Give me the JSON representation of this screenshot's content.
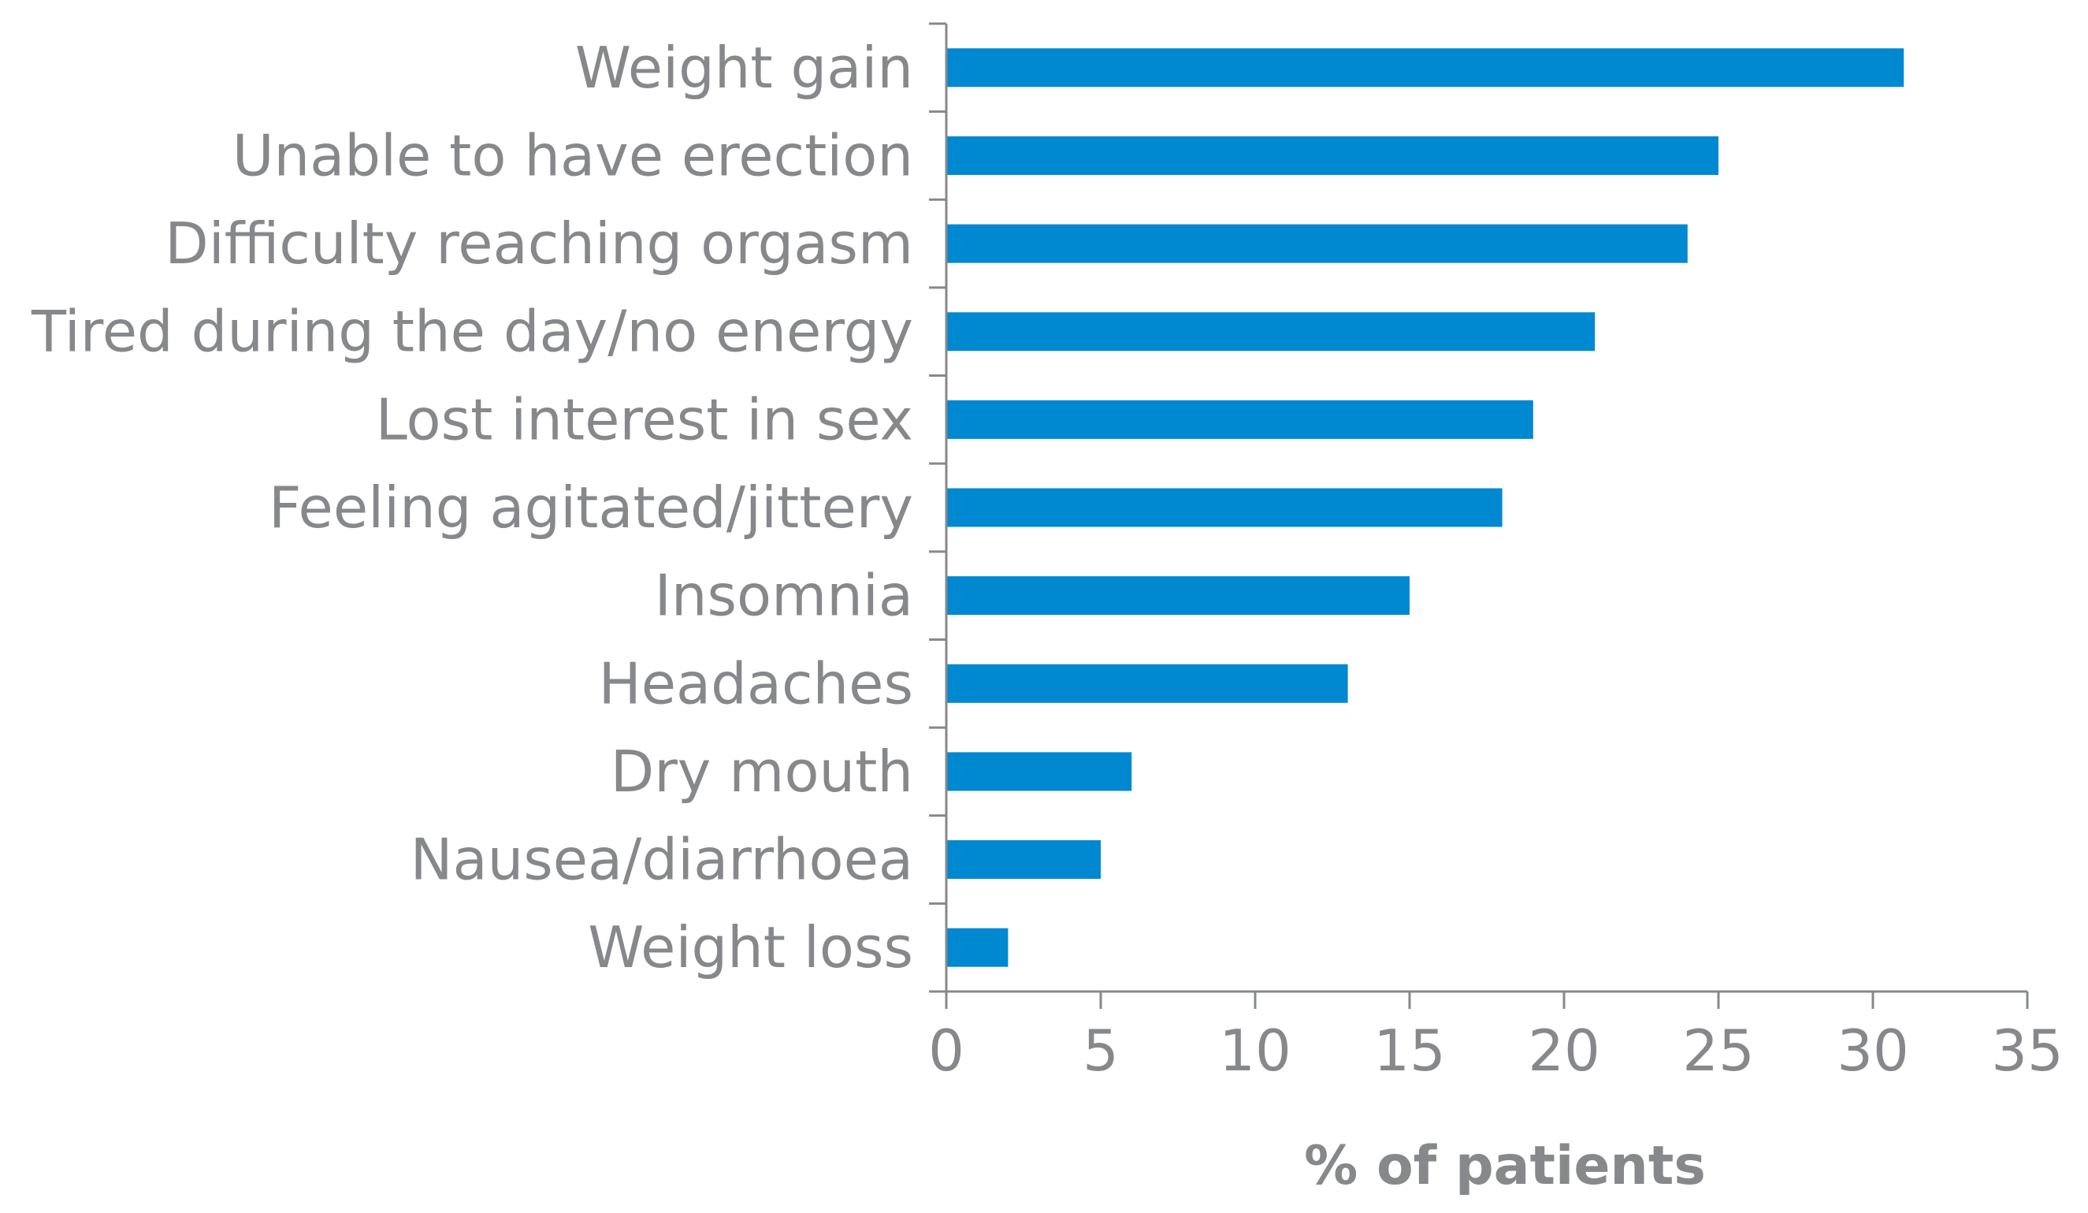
{
  "chart_data": {
    "type": "bar",
    "orientation": "horizontal",
    "categories": [
      "Weight gain",
      "Unable to have erection",
      "Difficulty reaching orgasm",
      "Tired during the day/no energy",
      "Lost interest in sex",
      "Feeling agitated/jittery",
      "Insomnia",
      "Headaches",
      "Dry mouth",
      "Nausea/diarrhoea",
      "Weight loss"
    ],
    "values": [
      31,
      25,
      24,
      21,
      19,
      18,
      15,
      13,
      6,
      5,
      2
    ],
    "xlabel": "% of patients",
    "ylabel": "",
    "xlim": [
      0,
      35
    ],
    "xticks": [
      "0",
      "5",
      "10",
      "15",
      "20",
      "25",
      "30",
      "35"
    ],
    "grid": false,
    "legend": "none",
    "colors": {
      "bar": "#0088d1",
      "axis": "#86888b",
      "text": "#86888b"
    }
  }
}
